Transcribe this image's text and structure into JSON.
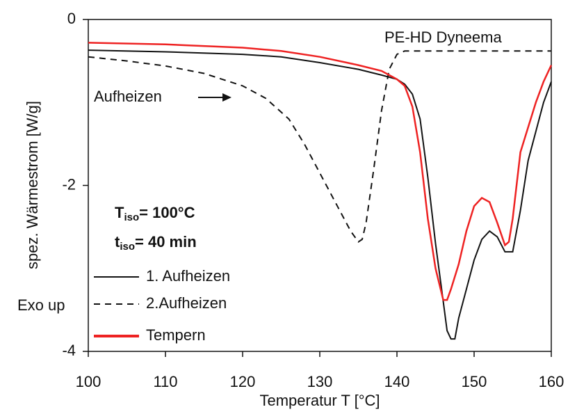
{
  "chart_data": {
    "type": "line",
    "xlabel": "Temperatur T [°C]",
    "ylabel": "spez. Wärmestrom [W/g]",
    "xlim": [
      100,
      160
    ],
    "ylim": [
      -4,
      0
    ],
    "xticks": [
      100,
      110,
      120,
      130,
      140,
      150,
      160
    ],
    "yticks": [
      0,
      -2,
      -4
    ],
    "legend": "lower left",
    "annotations": {
      "material": "PE-HD Dyneema",
      "direction": "Aufheizen",
      "exo": "Exo up",
      "tiso": {
        "main": "T",
        "sub": "iso",
        "rest": "= 100°C"
      },
      "time": {
        "main": "t",
        "sub": "iso",
        "rest": "= 40 min"
      }
    },
    "series": [
      {
        "name": "1. Aufheizen",
        "color": "#111111",
        "dash": false,
        "x": [
          100,
          110,
          120,
          125,
          130,
          135,
          138,
          140,
          141,
          142,
          143,
          144,
          145,
          146,
          146.5,
          147,
          147.5,
          148,
          149,
          150,
          151,
          152,
          153,
          154,
          155,
          156,
          157,
          158,
          159,
          160
        ],
        "values": [
          -0.37,
          -0.39,
          -0.42,
          -0.45,
          -0.52,
          -0.6,
          -0.67,
          -0.72,
          -0.78,
          -0.9,
          -1.2,
          -1.9,
          -2.7,
          -3.4,
          -3.75,
          -3.85,
          -3.85,
          -3.6,
          -3.25,
          -2.9,
          -2.65,
          -2.55,
          -2.62,
          -2.8,
          -2.8,
          -2.3,
          -1.7,
          -1.35,
          -1.0,
          -0.75
        ]
      },
      {
        "name": "2.Aufheizen",
        "color": "#111111",
        "dash": true,
        "x": [
          100,
          105,
          110,
          115,
          120,
          123,
          126,
          128,
          130,
          132,
          134,
          135,
          135.5,
          136,
          137,
          138,
          139,
          140,
          141,
          145,
          150,
          160
        ],
        "values": [
          -0.45,
          -0.5,
          -0.56,
          -0.65,
          -0.8,
          -0.95,
          -1.2,
          -1.5,
          -1.85,
          -2.2,
          -2.55,
          -2.68,
          -2.65,
          -2.45,
          -1.8,
          -1.1,
          -0.6,
          -0.42,
          -0.38,
          -0.38,
          -0.38,
          -0.38
        ]
      },
      {
        "name": "Tempern",
        "color": "#ee2222",
        "dash": false,
        "x": [
          100,
          110,
          120,
          125,
          130,
          135,
          138,
          140,
          141,
          142,
          143,
          144,
          145,
          146,
          146.5,
          147,
          148,
          149,
          150,
          151,
          152,
          153,
          154,
          154.5,
          155,
          156,
          157,
          158,
          159,
          160
        ],
        "values": [
          -0.28,
          -0.3,
          -0.34,
          -0.38,
          -0.45,
          -0.55,
          -0.62,
          -0.72,
          -0.8,
          -1.05,
          -1.6,
          -2.4,
          -3.0,
          -3.38,
          -3.38,
          -3.25,
          -2.95,
          -2.55,
          -2.25,
          -2.15,
          -2.2,
          -2.45,
          -2.72,
          -2.68,
          -2.4,
          -1.6,
          -1.3,
          -1.0,
          -0.75,
          -0.55
        ]
      }
    ]
  }
}
